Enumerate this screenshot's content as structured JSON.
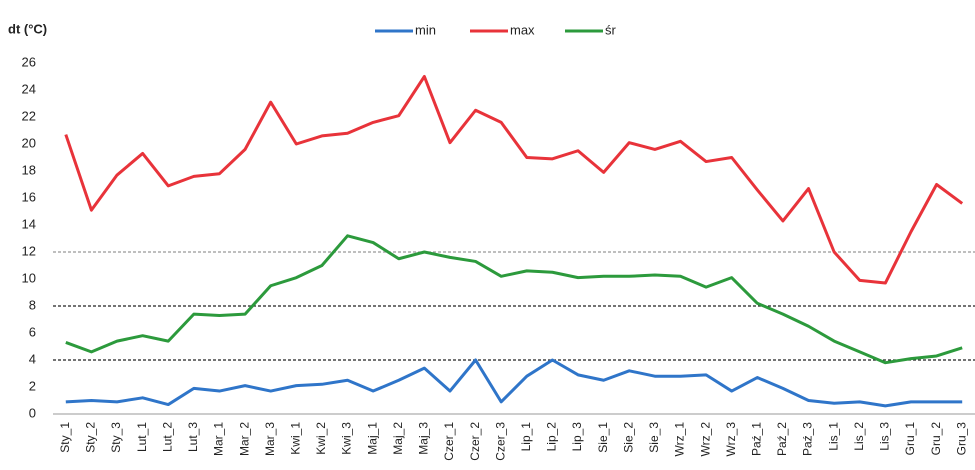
{
  "chart_data": {
    "type": "line",
    "y_label": "dt (°C)",
    "categories": [
      "Sty_1",
      "Sty_2",
      "Sty_3",
      "Lut_1",
      "Lut_2",
      "Lut_3",
      "Mar_1",
      "Mar_2",
      "Mar_3",
      "Kwi_1",
      "Kwi_2",
      "Kwi_3",
      "Maj_1",
      "Maj_2",
      "Maj_3",
      "Czer_1",
      "Czer_2",
      "Czer_3",
      "Lip_1",
      "Lip_2",
      "Lip_3",
      "Sie_1",
      "Sie_2",
      "Sie_3",
      "Wrz_1",
      "Wrz_2",
      "Wrz_3",
      "Paź_1",
      "Paź_2",
      "Paź_3",
      "Lis_1",
      "Lis_2",
      "Lis_3",
      "Gru_1",
      "Gru_2",
      "Gru_3"
    ],
    "series": [
      {
        "name": "min",
        "color": "#2f75c9",
        "values": [
          0.9,
          1.0,
          0.9,
          1.2,
          0.7,
          1.9,
          1.7,
          2.1,
          1.7,
          2.1,
          2.2,
          2.5,
          1.7,
          2.5,
          3.4,
          1.7,
          4.0,
          0.9,
          2.8,
          4.0,
          2.9,
          2.5,
          3.2,
          2.8,
          2.8,
          2.9,
          1.7,
          2.7,
          1.9,
          1.0,
          0.8,
          0.9,
          0.6,
          0.9,
          0.9,
          0.9
        ]
      },
      {
        "name": "max",
        "color": "#e8333a",
        "values": [
          20.7,
          15.1,
          17.7,
          19.3,
          16.9,
          17.6,
          17.8,
          19.6,
          23.1,
          20.0,
          20.6,
          20.8,
          21.6,
          22.1,
          25.0,
          20.1,
          22.5,
          21.6,
          19.0,
          18.9,
          19.5,
          17.9,
          20.1,
          19.6,
          20.2,
          18.7,
          19.0,
          16.6,
          14.3,
          16.7,
          12.0,
          9.9,
          9.7,
          13.5,
          17.0,
          15.6
        ]
      },
      {
        "name": "śr",
        "color": "#2c9a3c",
        "values": [
          5.3,
          4.6,
          5.4,
          5.8,
          5.4,
          7.4,
          7.3,
          7.4,
          9.5,
          10.1,
          11.0,
          13.2,
          12.7,
          11.5,
          12.0,
          11.6,
          11.3,
          10.2,
          10.6,
          10.5,
          10.1,
          10.2,
          10.2,
          10.3,
          10.2,
          9.4,
          10.1,
          8.2,
          7.4,
          6.5,
          5.4,
          4.6,
          3.8,
          4.1,
          4.3,
          4.9
        ]
      }
    ],
    "ylim": [
      0,
      26
    ],
    "yticks": [
      0,
      2,
      4,
      6,
      8,
      10,
      12,
      14,
      16,
      18,
      20,
      22,
      24,
      26
    ],
    "reference_lines": [
      {
        "value": 4,
        "color": "#222222"
      },
      {
        "value": 8,
        "color": "#222222"
      },
      {
        "value": 12,
        "color": "#999999"
      }
    ],
    "legend": "top"
  }
}
